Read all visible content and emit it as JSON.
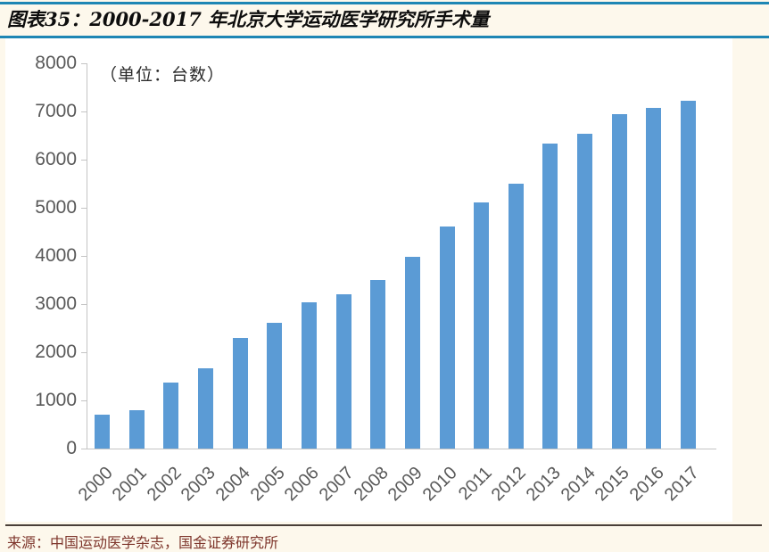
{
  "header": {
    "title": "图表35：2000-2017 年北京大学运动医学研究所手术量"
  },
  "unit_label": "（单位：台数）",
  "source": "来源：中国运动医学杂志，国金证券研究所",
  "colors": {
    "page_background": "#fdf8ec",
    "canvas_background": "#ffffff",
    "accent_rule_blue": "#1e86b4",
    "bar_blue": "#5b9bd5",
    "axis_gray": "#c4c4c4",
    "tick_label_gray": "#595959",
    "source_text_maroon": "#7e352b"
  },
  "chart_data": {
    "type": "bar",
    "title": "图表35：2000-2017 年北京大学运动医学研究所手术量",
    "unit": "台数",
    "categories": [
      "2000",
      "2001",
      "2002",
      "2003",
      "2004",
      "2005",
      "2006",
      "2007",
      "2008",
      "2009",
      "2010",
      "2011",
      "2012",
      "2013",
      "2014",
      "2015",
      "2016",
      "2017"
    ],
    "values": [
      700,
      800,
      1370,
      1660,
      2290,
      2620,
      3040,
      3210,
      3500,
      3980,
      4620,
      5120,
      5500,
      6330,
      6540,
      6950,
      7080,
      7230
    ],
    "xlabel": "",
    "ylabel": "",
    "ylim": [
      0,
      8000
    ],
    "ytick_interval": 1000,
    "grid": false,
    "legend": "none",
    "bar_color": "#5b9bd5"
  }
}
